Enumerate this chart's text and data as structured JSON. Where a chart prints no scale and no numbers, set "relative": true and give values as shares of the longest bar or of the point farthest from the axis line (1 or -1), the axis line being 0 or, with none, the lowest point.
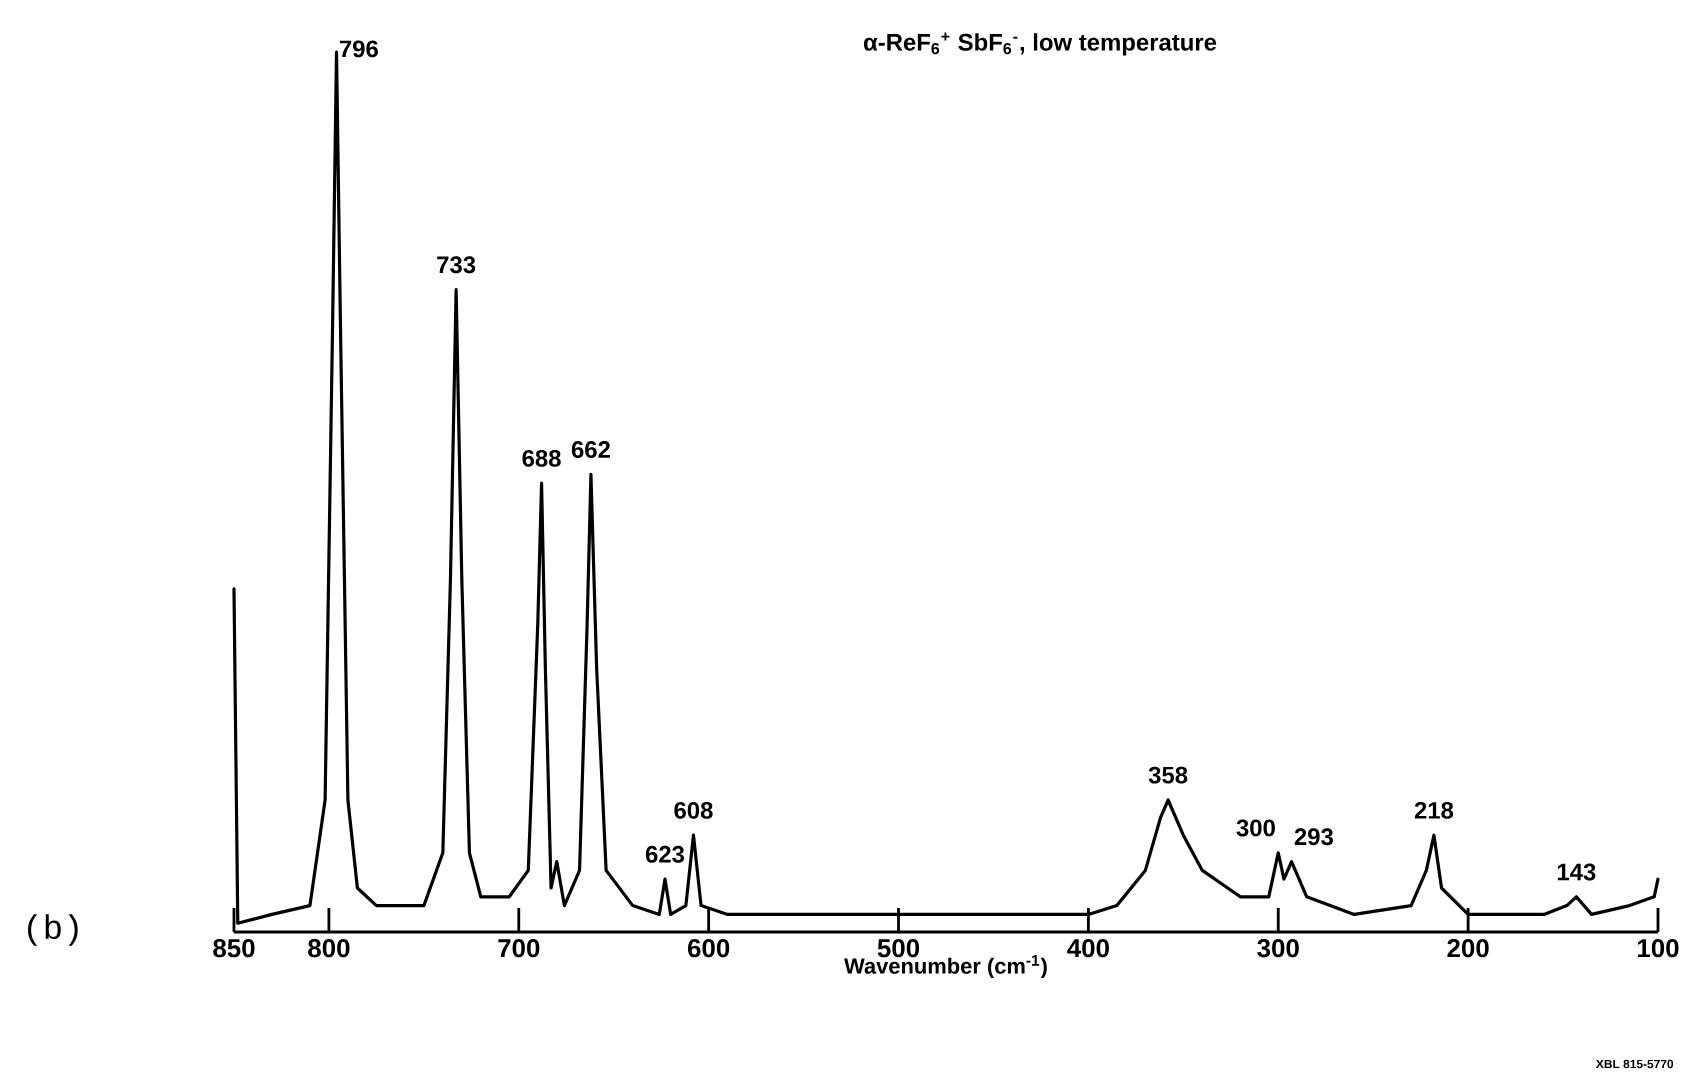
{
  "chart_data": {
    "type": "line",
    "relative": true,
    "title": "α-ReF$_{6}$$^{+}$ SbF$_{6}$$^{-}$, low temperature",
    "xlabel": "Wavenumber (cm$^{-1}$)",
    "xlim": [
      850,
      100
    ],
    "xticks": [
      850,
      800,
      700,
      600,
      500,
      400,
      300,
      200,
      100
    ],
    "series": [
      {
        "color": "#000000",
        "x": [
          850,
          848,
          830,
          810,
          802,
          798,
          796,
          794,
          790,
          785,
          775,
          750,
          740,
          736,
          733,
          730,
          726,
          720,
          705,
          695,
          690,
          688,
          686,
          683,
          680,
          676,
          668,
          664,
          662,
          659,
          654,
          640,
          626,
          623,
          620,
          612,
          608,
          604,
          590,
          500,
          400,
          385,
          370,
          362,
          358,
          350,
          340,
          320,
          305,
          300,
          297,
          293,
          285,
          260,
          230,
          222,
          218,
          214,
          200,
          160,
          148,
          143,
          135,
          115,
          102,
          100
        ],
        "values": [
          0.39,
          0.01,
          0.02,
          0.03,
          0.15,
          0.7,
          1.0,
          0.7,
          0.15,
          0.05,
          0.03,
          0.03,
          0.09,
          0.4,
          0.73,
          0.4,
          0.09,
          0.04,
          0.04,
          0.07,
          0.35,
          0.51,
          0.3,
          0.05,
          0.08,
          0.03,
          0.07,
          0.35,
          0.52,
          0.3,
          0.07,
          0.03,
          0.02,
          0.06,
          0.02,
          0.03,
          0.11,
          0.03,
          0.02,
          0.02,
          0.02,
          0.03,
          0.07,
          0.13,
          0.15,
          0.11,
          0.07,
          0.04,
          0.04,
          0.09,
          0.06,
          0.08,
          0.04,
          0.02,
          0.03,
          0.07,
          0.11,
          0.05,
          0.02,
          0.02,
          0.03,
          0.04,
          0.02,
          0.03,
          0.04,
          0.06
        ]
      }
    ],
    "annotations": [
      {
        "text": "796",
        "x": 796,
        "y": 1.0
      },
      {
        "text": "733",
        "x": 733,
        "y": 0.73
      },
      {
        "text": "688",
        "x": 688,
        "y": 0.51
      },
      {
        "text": "662",
        "x": 662,
        "y": 0.52
      },
      {
        "text": "623",
        "x": 623,
        "y": 0.06
      },
      {
        "text": "608",
        "x": 608,
        "y": 0.11
      },
      {
        "text": "358",
        "x": 358,
        "y": 0.15
      },
      {
        "text": "300",
        "x": 300,
        "y": 0.09
      },
      {
        "text": "293",
        "x": 293,
        "y": 0.08
      },
      {
        "text": "218",
        "x": 218,
        "y": 0.11
      },
      {
        "text": "143",
        "x": 143,
        "y": 0.04
      },
      "(b)",
      "XBL 815-5770"
    ]
  }
}
